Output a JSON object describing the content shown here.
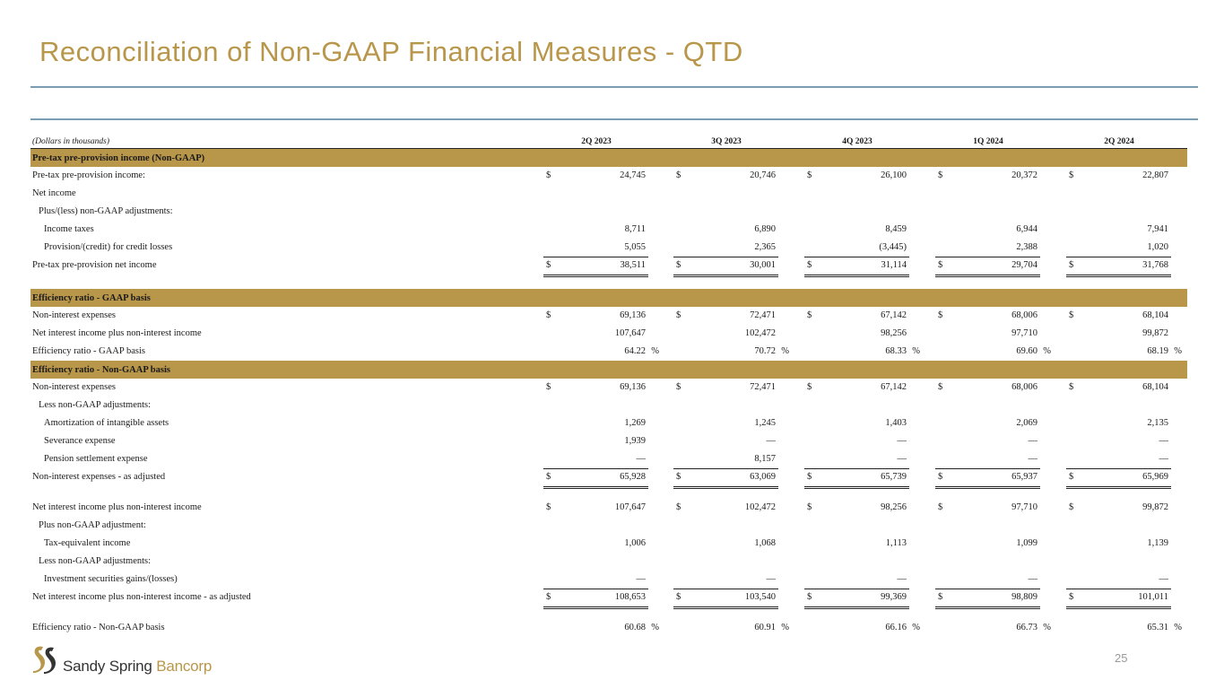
{
  "title": "Reconciliation of Non-GAAP Financial Measures - QTD",
  "page_number": "25",
  "brand": {
    "part1": "Sandy Spring",
    "part2": " Bancorp",
    "colors": {
      "gold": "#b8964a",
      "rule": "#7a9db3"
    }
  },
  "table": {
    "units_label": "(Dollars in thousands)",
    "columns": [
      "2Q 2023",
      "3Q 2023",
      "4Q 2023",
      "1Q 2024",
      "2Q 2024"
    ],
    "sections": [
      {
        "header": "Pre-tax pre-provision income (Non-GAAP)",
        "rows": [
          {
            "label": "Pre-tax pre-provision income:",
            "indent": 0,
            "dollar": true,
            "values": [
              "24,745",
              "20,746",
              "26,100",
              "20,372",
              "22,807"
            ]
          },
          {
            "label": "Net income",
            "indent": 0,
            "values": []
          },
          {
            "label": "Plus/(less) non-GAAP adjustments:",
            "indent": 1,
            "values": []
          },
          {
            "label": "Income taxes",
            "indent": 2,
            "values": [
              "8,711",
              "6,890",
              "8,459",
              "6,944",
              "7,941"
            ]
          },
          {
            "label": "Provision/(credit) for credit losses",
            "indent": 2,
            "underline": true,
            "values": [
              "5,055",
              "2,365",
              "(3,445)",
              "2,388",
              "1,020"
            ]
          },
          {
            "label": "Pre-tax pre-provision net income",
            "indent": 0,
            "dollar": true,
            "double": true,
            "values": [
              "38,511",
              "30,001",
              "31,114",
              "29,704",
              "31,768"
            ]
          }
        ]
      },
      {
        "header": "Efficiency ratio - GAAP basis",
        "rows": [
          {
            "label": "Non-interest expenses",
            "indent": 0,
            "dollar": true,
            "values": [
              "69,136",
              "72,471",
              "67,142",
              "68,006",
              "68,104"
            ]
          },
          {
            "label": "Net interest income plus non-interest income",
            "indent": 0,
            "values": [
              "107,647",
              "102,472",
              "98,256",
              "97,710",
              "99,872"
            ]
          },
          {
            "label": "Efficiency ratio - GAAP basis",
            "indent": 0,
            "pct": true,
            "values": [
              "64.22",
              "70.72",
              "68.33",
              "69.60",
              "68.19"
            ]
          }
        ]
      },
      {
        "header": "Efficiency ratio - Non-GAAP basis",
        "rows": [
          {
            "label": "Non-interest expenses",
            "indent": 0,
            "dollar": true,
            "values": [
              "69,136",
              "72,471",
              "67,142",
              "68,006",
              "68,104"
            ]
          },
          {
            "label": "Less non-GAAP adjustments:",
            "indent": 1,
            "values": []
          },
          {
            "label": "Amortization of intangible assets",
            "indent": 2,
            "values": [
              "1,269",
              "1,245",
              "1,403",
              "2,069",
              "2,135"
            ]
          },
          {
            "label": "Severance expense",
            "indent": 2,
            "values": [
              "1,939",
              "—",
              "—",
              "—",
              "—"
            ]
          },
          {
            "label": "Pension settlement expense",
            "indent": 2,
            "underline": true,
            "values": [
              "—",
              "8,157",
              "—",
              "—",
              "—"
            ]
          },
          {
            "label": "Non-interest expenses -  as adjusted",
            "indent": 0,
            "dollar": true,
            "double": true,
            "values": [
              "65,928",
              "63,069",
              "65,739",
              "65,937",
              "65,969"
            ]
          },
          {
            "label": "Net interest income plus non-interest income",
            "indent": 0,
            "dollar": true,
            "values": [
              "107,647",
              "102,472",
              "98,256",
              "97,710",
              "99,872"
            ]
          },
          {
            "label": "Plus non-GAAP adjustment:",
            "indent": 1,
            "values": []
          },
          {
            "label": "Tax-equivalent income",
            "indent": 2,
            "values": [
              "1,006",
              "1,068",
              "1,113",
              "1,099",
              "1,139"
            ]
          },
          {
            "label": "Less non-GAAP adjustments:",
            "indent": 1,
            "values": []
          },
          {
            "label": "Investment securities gains/(losses)",
            "indent": 2,
            "underline": true,
            "values": [
              "—",
              "—",
              "—",
              "—",
              "—"
            ]
          },
          {
            "label": "Net interest income plus non-interest income - as adjusted",
            "indent": 0,
            "dollar": true,
            "double": true,
            "values": [
              "108,653",
              "103,540",
              "99,369",
              "98,809",
              "101,011"
            ]
          },
          {
            "label": "Efficiency ratio - Non-GAAP basis",
            "indent": 0,
            "pct": true,
            "values": [
              "60.68",
              "60.91",
              "66.16",
              "66.73",
              "65.31"
            ]
          }
        ]
      }
    ]
  }
}
